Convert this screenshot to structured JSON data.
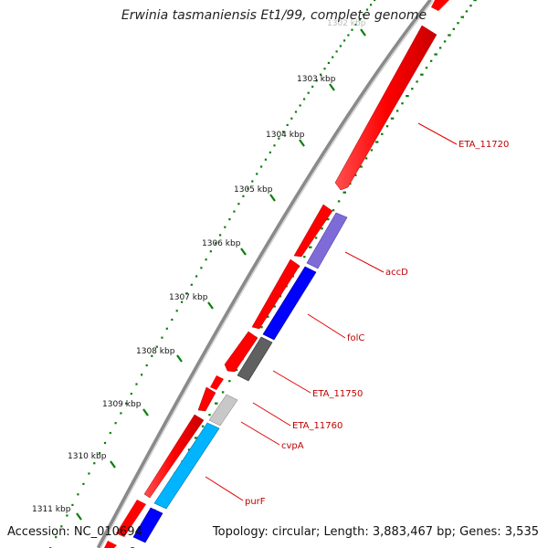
{
  "title": "Erwinia tasmaniensis Et1/99, complete genome",
  "footer": {
    "accession": "Accession: NC_010694",
    "summary": "Topology: circular; Length: 3,883,467 bp; Genes: 3,535"
  },
  "ticks": [
    "1302 kbp",
    "1303 kbp",
    "1304 kbp",
    "1305 kbp",
    "1306 kbp",
    "1307 kbp",
    "1308 kbp",
    "1309 kbp",
    "1310 kbp",
    "1311 kbp"
  ],
  "genes": [
    {
      "name": "ETA_11720",
      "color": "#ff0000"
    },
    {
      "name": "accD",
      "color": "#7f6bd8"
    },
    {
      "name": "folC",
      "color": "#0000ff"
    },
    {
      "name": "ETA_11750",
      "color": "#606060"
    },
    {
      "name": "ETA_11760",
      "color": "#ff0000"
    },
    {
      "name": "cvpA",
      "color": "#c8c8c8"
    },
    {
      "name": "purF",
      "color": "#00b4ff"
    }
  ],
  "colors": {
    "backbone": "#8a8a8a",
    "cds_forward": "#ff0000",
    "gc_skew": "#0a7d0a",
    "label": "#c00000"
  }
}
